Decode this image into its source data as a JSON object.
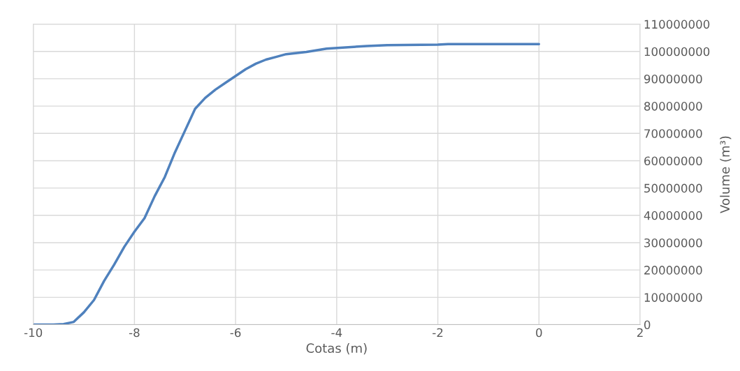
{
  "chart_data": {
    "type": "line",
    "xlabel": "Cotas (m)",
    "ylabel": "Volume (m³)",
    "x": [
      -10,
      -9.6,
      -9.4,
      -9.2,
      -9.0,
      -8.8,
      -8.6,
      -8.4,
      -8.2,
      -8.0,
      -7.8,
      -7.6,
      -7.4,
      -7.2,
      -7.0,
      -6.8,
      -6.6,
      -6.4,
      -6.2,
      -6.0,
      -5.8,
      -5.6,
      -5.4,
      -5.2,
      -5.0,
      -4.6,
      -4.2,
      -3.4,
      -3.0,
      -2.0,
      -1.8,
      0
    ],
    "series": [
      {
        "color": "#4f81bd",
        "values": [
          0,
          0,
          200000,
          1000000,
          4500000,
          9000000,
          16000000,
          22000000,
          28500000,
          34000000,
          39000000,
          47000000,
          54000000,
          63000000,
          71000000,
          79000000,
          83000000,
          86000000,
          88500000,
          91000000,
          93500000,
          95500000,
          97000000,
          98000000,
          99000000,
          99800000,
          101000000,
          102000000,
          102300000,
          102500000,
          102700000,
          102700000
        ]
      }
    ],
    "xlim": [
      -10,
      2
    ],
    "xticks": [
      -10,
      -8,
      -6,
      -4,
      -2,
      0,
      2
    ],
    "ylim": [
      0,
      110000000
    ],
    "yticks": [
      0,
      10000000,
      20000000,
      30000000,
      40000000,
      50000000,
      60000000,
      70000000,
      80000000,
      90000000,
      100000000,
      110000000
    ],
    "grid": true,
    "legend": false,
    "marker": "none",
    "line_style": "solid"
  }
}
